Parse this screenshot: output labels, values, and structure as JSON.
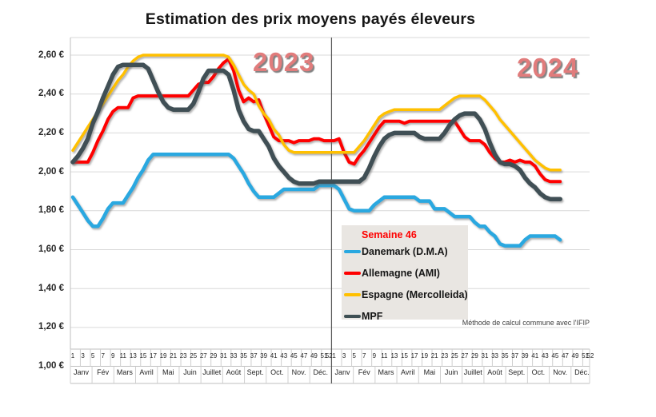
{
  "title": "Estimation des prix moyens payés éleveurs",
  "year_labels": [
    "2023",
    "2024"
  ],
  "legend": {
    "week_label": "Semaine 46",
    "items": [
      {
        "label": "Danemark (D.M.A)",
        "color": "#29a8e0"
      },
      {
        "label": "Allemagne (AMI)",
        "color": "#fe0000"
      },
      {
        "label": "Espagne (Mercolleida)",
        "color": "#ffc000"
      },
      {
        "label": "MPF",
        "color": "#3f5054"
      }
    ]
  },
  "footnote": "Méthode de calcul commune avec l'IFIP",
  "chart_data": {
    "type": "line",
    "title": "Estimation des prix moyens payés éleveurs",
    "currency": "€",
    "ylim": [
      1.0,
      2.7
    ],
    "grid": true,
    "legend_position": "inside-bottom-center",
    "y_tick_labels": [
      "2,60 €",
      "2,40 €",
      "2,20 €",
      "2,00 €",
      "1,80 €",
      "1,60 €",
      "1,40 €",
      "1,20 €",
      "1,00 €"
    ],
    "y_tick_values": [
      2.6,
      2.4,
      2.2,
      2.0,
      1.8,
      1.6,
      1.4,
      1.2,
      1.0
    ],
    "week_tick_labels": [
      "1",
      "3",
      "5",
      "7",
      "9",
      "11",
      "13",
      "15",
      "17",
      "19",
      "21",
      "23",
      "25",
      "27",
      "29",
      "31",
      "33",
      "35",
      "37",
      "39",
      "41",
      "43",
      "45",
      "47",
      "49",
      "51",
      "52"
    ],
    "month_labels": [
      "Janv",
      "Fév",
      "Mars",
      "Avril",
      "Mai",
      "Juin",
      "Juillet",
      "Août",
      "Sept.",
      "Oct.",
      "Nov.",
      "Déc."
    ],
    "years": [
      "2023",
      "2024"
    ],
    "x_unit": "semaine",
    "current_week_annotation": "Semaine 46",
    "series": [
      {
        "name": "Danemark (D.M.A)",
        "color": "#29a8e0",
        "stroke_width": 4.5,
        "values_2023": [
          1.87,
          1.83,
          1.79,
          1.75,
          1.72,
          1.72,
          1.76,
          1.81,
          1.84,
          1.84,
          1.84,
          1.88,
          1.92,
          1.97,
          2.01,
          2.06,
          2.09,
          2.09,
          2.09,
          2.09,
          2.09,
          2.09,
          2.09,
          2.09,
          2.09,
          2.09,
          2.09,
          2.09,
          2.09,
          2.09,
          2.09,
          2.09,
          2.07,
          2.03,
          1.99,
          1.94,
          1.9,
          1.87,
          1.87,
          1.87,
          1.87,
          1.89,
          1.91,
          1.91,
          1.91,
          1.91,
          1.91,
          1.91,
          1.91,
          1.93,
          1.93,
          1.93
        ],
        "values_2024": [
          1.93,
          1.91,
          1.86,
          1.81,
          1.8,
          1.8,
          1.8,
          1.8,
          1.83,
          1.85,
          1.87,
          1.87,
          1.87,
          1.87,
          1.87,
          1.87,
          1.87,
          1.85,
          1.85,
          1.85,
          1.81,
          1.81,
          1.81,
          1.79,
          1.77,
          1.77,
          1.77,
          1.77,
          1.74,
          1.72,
          1.72,
          1.69,
          1.67,
          1.63,
          1.62,
          1.62,
          1.62,
          1.62,
          1.65,
          1.67,
          1.67,
          1.67,
          1.67,
          1.67,
          1.67,
          1.65
        ]
      },
      {
        "name": "Allemagne (AMI)",
        "color": "#fe0000",
        "stroke_width": 4,
        "values_2023": [
          2.05,
          2.05,
          2.05,
          2.05,
          2.1,
          2.16,
          2.21,
          2.27,
          2.31,
          2.33,
          2.33,
          2.33,
          2.38,
          2.39,
          2.39,
          2.39,
          2.39,
          2.39,
          2.39,
          2.39,
          2.39,
          2.39,
          2.39,
          2.39,
          2.42,
          2.45,
          2.46,
          2.46,
          2.49,
          2.53,
          2.56,
          2.58,
          2.52,
          2.42,
          2.36,
          2.38,
          2.36,
          2.37,
          2.3,
          2.24,
          2.18,
          2.16,
          2.16,
          2.16,
          2.15,
          2.16,
          2.16,
          2.16,
          2.17,
          2.17,
          2.16,
          2.16
        ],
        "values_2024": [
          2.16,
          2.17,
          2.1,
          2.05,
          2.04,
          2.08,
          2.11,
          2.15,
          2.19,
          2.23,
          2.26,
          2.26,
          2.26,
          2.26,
          2.25,
          2.26,
          2.26,
          2.26,
          2.26,
          2.26,
          2.26,
          2.26,
          2.26,
          2.26,
          2.26,
          2.22,
          2.18,
          2.16,
          2.16,
          2.16,
          2.14,
          2.1,
          2.07,
          2.05,
          2.05,
          2.06,
          2.05,
          2.06,
          2.05,
          2.05,
          2.03,
          1.99,
          1.96,
          1.95,
          1.95,
          1.95
        ]
      },
      {
        "name": "Espagne (Mercolleida)",
        "color": "#ffc000",
        "stroke_width": 3.5,
        "values_2023": [
          2.11,
          2.15,
          2.19,
          2.23,
          2.27,
          2.31,
          2.35,
          2.39,
          2.43,
          2.47,
          2.5,
          2.54,
          2.57,
          2.59,
          2.6,
          2.6,
          2.6,
          2.6,
          2.6,
          2.6,
          2.6,
          2.6,
          2.6,
          2.6,
          2.6,
          2.6,
          2.6,
          2.6,
          2.6,
          2.6,
          2.6,
          2.59,
          2.55,
          2.5,
          2.45,
          2.42,
          2.4,
          2.34,
          2.3,
          2.27,
          2.22,
          2.19,
          2.14,
          2.11,
          2.1,
          2.1,
          2.1,
          2.1,
          2.1,
          2.1,
          2.1,
          2.1
        ],
        "values_2024": [
          2.1,
          2.1,
          2.1,
          2.1,
          2.1,
          2.13,
          2.16,
          2.2,
          2.24,
          2.28,
          2.3,
          2.31,
          2.32,
          2.32,
          2.32,
          2.32,
          2.32,
          2.32,
          2.32,
          2.32,
          2.32,
          2.32,
          2.34,
          2.36,
          2.38,
          2.39,
          2.39,
          2.39,
          2.39,
          2.39,
          2.37,
          2.34,
          2.31,
          2.27,
          2.24,
          2.21,
          2.18,
          2.15,
          2.12,
          2.09,
          2.06,
          2.04,
          2.02,
          2.01,
          2.01,
          2.01
        ]
      },
      {
        "name": "MPF",
        "color": "#3f5054",
        "stroke_width": 5.5,
        "values_2023": [
          2.05,
          2.08,
          2.12,
          2.17,
          2.25,
          2.31,
          2.38,
          2.44,
          2.5,
          2.54,
          2.55,
          2.55,
          2.55,
          2.55,
          2.55,
          2.53,
          2.47,
          2.41,
          2.36,
          2.33,
          2.32,
          2.32,
          2.32,
          2.32,
          2.35,
          2.41,
          2.48,
          2.52,
          2.52,
          2.52,
          2.52,
          2.5,
          2.42,
          2.32,
          2.26,
          2.22,
          2.21,
          2.21,
          2.17,
          2.13,
          2.07,
          2.03,
          2.0,
          1.97,
          1.95,
          1.94,
          1.94,
          1.94,
          1.94,
          1.95,
          1.95,
          1.95
        ],
        "values_2024": [
          1.95,
          1.95,
          1.95,
          1.95,
          1.95,
          1.95,
          1.97,
          2.02,
          2.08,
          2.13,
          2.17,
          2.19,
          2.2,
          2.2,
          2.2,
          2.2,
          2.2,
          2.18,
          2.17,
          2.17,
          2.17,
          2.17,
          2.2,
          2.24,
          2.27,
          2.29,
          2.3,
          2.3,
          2.3,
          2.27,
          2.22,
          2.15,
          2.09,
          2.05,
          2.04,
          2.04,
          2.03,
          2.01,
          1.97,
          1.94,
          1.92,
          1.89,
          1.87,
          1.86,
          1.86,
          1.86
        ]
      }
    ]
  }
}
